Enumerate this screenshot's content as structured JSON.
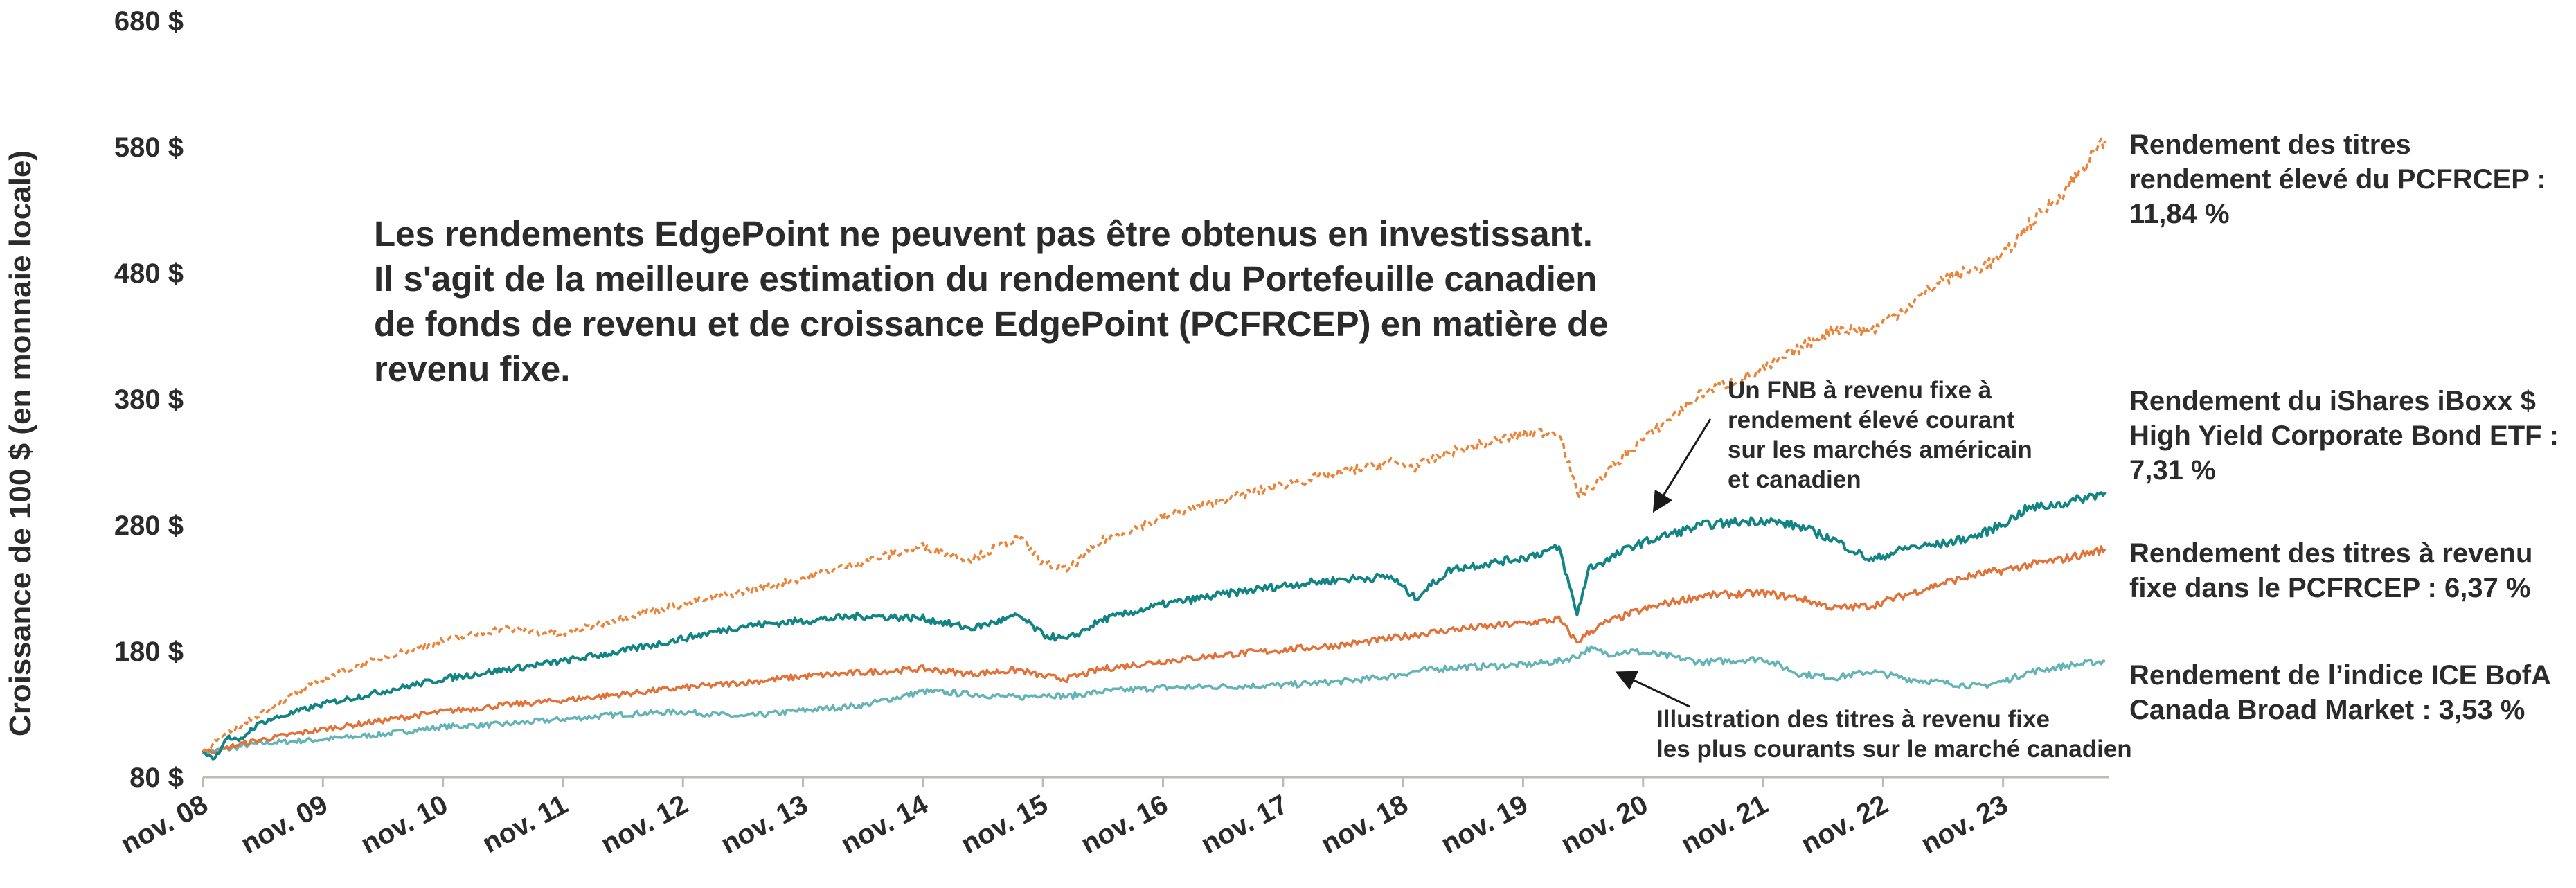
{
  "chart_data": {
    "type": "line",
    "title": "",
    "ylabel": "Croissance de 100 $ (en monnaie locale)",
    "xlabel": "",
    "ylim": [
      80,
      680
    ],
    "yticks": [
      {
        "value": 80,
        "label": "80 $"
      },
      {
        "value": 180,
        "label": "180 $"
      },
      {
        "value": 280,
        "label": "280 $"
      },
      {
        "value": 380,
        "label": "380 $"
      },
      {
        "value": 480,
        "label": "480 $"
      },
      {
        "value": 580,
        "label": "580 $"
      },
      {
        "value": 680,
        "label": "680 $"
      }
    ],
    "xlim": [
      0,
      15.85
    ],
    "xticks": [
      {
        "value": 0,
        "label": "nov. 08"
      },
      {
        "value": 1,
        "label": "nov. 09"
      },
      {
        "value": 2,
        "label": "nov. 10"
      },
      {
        "value": 3,
        "label": "nov. 11"
      },
      {
        "value": 4,
        "label": "nov. 12"
      },
      {
        "value": 5,
        "label": "nov. 13"
      },
      {
        "value": 6,
        "label": "nov. 14"
      },
      {
        "value": 7,
        "label": "nov. 15"
      },
      {
        "value": 8,
        "label": "nov. 16"
      },
      {
        "value": 9,
        "label": "nov. 17"
      },
      {
        "value": 10,
        "label": "nov. 18"
      },
      {
        "value": 11,
        "label": "nov. 19"
      },
      {
        "value": 12,
        "label": "nov. 20"
      },
      {
        "value": 13,
        "label": "nov. 21"
      },
      {
        "value": 14,
        "label": "nov. 22"
      },
      {
        "value": 15,
        "label": "nov. 23"
      }
    ],
    "x": [
      0,
      0.1,
      0.2,
      0.3,
      0.4,
      0.5,
      1,
      1.5,
      2,
      2.5,
      3,
      3.5,
      4,
      4.5,
      5,
      5.5,
      6,
      6.4,
      6.8,
      7,
      7.2,
      7.5,
      8,
      8.5,
      9,
      9.5,
      9.9,
      10.1,
      10.4,
      11,
      11.3,
      11.45,
      11.55,
      11.7,
      11.9,
      12.2,
      12.5,
      13,
      13.3,
      13.6,
      13.9,
      14.2,
      14.5,
      14.8,
      15,
      15.2,
      15.5,
      15.85
    ],
    "series": [
      {
        "name": "Rendement des titres rendement élevé du PCFRCEP",
        "color": "#e98438",
        "dash": "8 5",
        "values": [
          100,
          108,
          114,
          120,
          126,
          132,
          158,
          175,
          188,
          198,
          193,
          207,
          217,
          227,
          238,
          251,
          263,
          253,
          270,
          250,
          244,
          268,
          286,
          300,
          312,
          322,
          330,
          326,
          338,
          352,
          355,
          305,
          308,
          322,
          340,
          363,
          385,
          403,
          420,
          436,
          434,
          453,
          475,
          484,
          493,
          517,
          544,
          585
        ]
      },
      {
        "name": "Rendement du iShares iBoxx $ High Yield Corporate Bond ETF",
        "color": "#138484",
        "dash": "",
        "values": [
          100,
          95,
          112,
          108,
          118,
          124,
          138,
          148,
          158,
          165,
          172,
          180,
          190,
          200,
          204,
          208,
          206,
          198,
          208,
          193,
          189,
          205,
          217,
          225,
          232,
          237,
          239,
          222,
          245,
          254,
          262,
          209,
          246,
          252,
          263,
          272,
          280,
          284,
          279,
          268,
          252,
          262,
          265,
          272,
          281,
          293,
          297,
          306
        ]
      },
      {
        "name": "Rendement des titres à revenu fixe dans le PCFRCEP",
        "color": "#e0733a",
        "dash": "",
        "values": [
          100,
          101,
          103,
          106,
          108,
          110,
          118,
          125,
          132,
          137,
          141,
          146,
          151,
          155,
          160,
          163,
          166,
          162,
          165,
          160,
          158,
          166,
          172,
          177,
          181,
          185,
          190,
          193,
          197,
          202,
          205,
          187,
          195,
          203,
          210,
          218,
          224,
          226,
          222,
          214,
          216,
          225,
          234,
          241,
          244,
          248,
          253,
          261
        ]
      },
      {
        "name": "Rendement de l’indice ICE BofA Canada Broad Market",
        "color": "#64b3b5",
        "dash": "",
        "values": [
          100,
          101,
          102,
          104,
          106,
          107,
          110,
          114,
          120,
          122,
          126,
          130,
          132,
          128,
          133,
          137,
          148,
          146,
          143,
          146,
          144,
          148,
          151,
          152,
          153,
          156,
          160,
          164,
          167,
          169,
          172,
          176,
          182,
          178,
          180,
          176,
          171,
          174,
          162,
          159,
          164,
          158,
          155,
          152,
          156,
          163,
          168,
          172
        ]
      }
    ],
    "legend_entries": [
      {
        "line1": "Rendement des titres",
        "line2": "rendement élevé du PCFRCEP :",
        "line3": "11,84 %"
      },
      {
        "line1": "Rendement du iShares iBoxx $",
        "line2": "High Yield Corporate Bond ETF :",
        "line3": "7,31 %"
      },
      {
        "line1": "Rendement des titres à revenu",
        "line2": "fixe dans le PCFRCEP : 6,37 %"
      },
      {
        "line1": "Rendement de l’indice ICE BofA",
        "line2": "Canada Broad Market : 3,53 %"
      }
    ],
    "note_lines": [
      "Les rendements EdgePoint ne peuvent pas être obtenus en investissant.",
      "Il s'agit de la meilleure estimation du rendement du Portefeuille canadien",
      "de fonds de revenu et de croissance EdgePoint (PCFRCEP) en matière de",
      "revenu fixe."
    ],
    "annotations": [
      {
        "lines": [
          "Un FNB à revenu fixe à",
          "rendement élevé courant",
          "sur les marchés américain",
          "et canadien"
        ],
        "arrow_to": {
          "x": 12.05,
          "y": 268
        }
      },
      {
        "lines": [
          "Illustration des titres à revenu fixe",
          "les plus courants sur le marché canadien"
        ],
        "arrow_to": {
          "x": 11.9,
          "y": 172
        }
      }
    ],
    "axis_color": "#b9bdb2"
  }
}
